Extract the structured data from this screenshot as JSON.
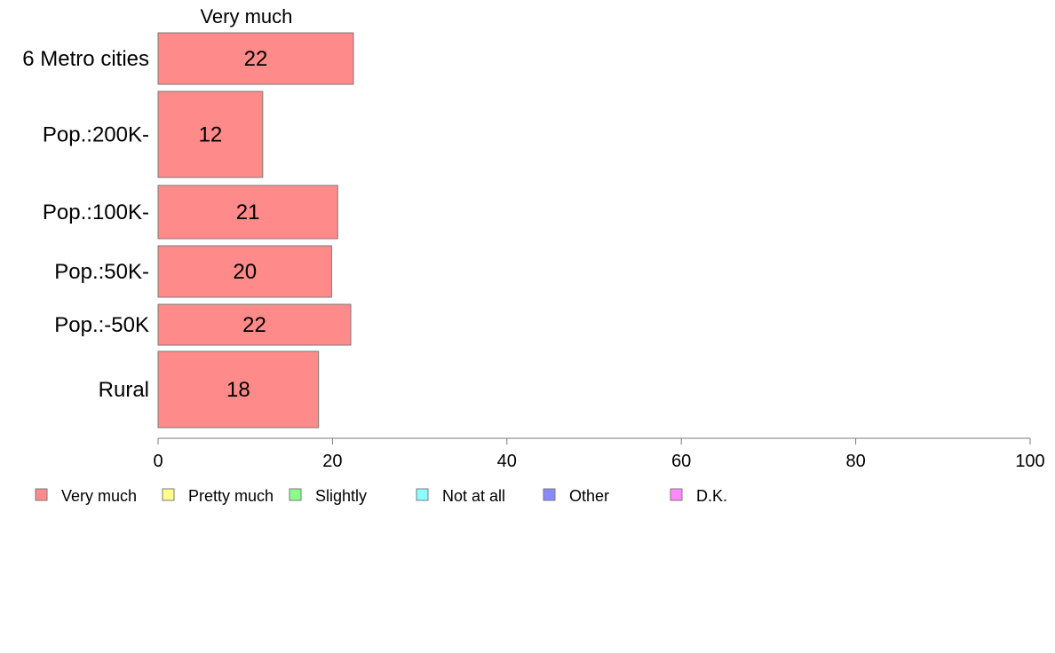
{
  "chart_data": {
    "type": "bar",
    "orientation": "horizontal",
    "stacked": true,
    "panel_title": "Very much",
    "categories": [
      "6 Metro cities",
      "Pop.:200K-",
      "Pop.:100K-",
      "Pop.:50K-",
      "Pop.:-50K",
      "Rural"
    ],
    "series": [
      {
        "name": "Very much",
        "color": "#ff8a8a",
        "values": [
          22.4,
          12,
          20.6,
          19.9,
          22.1,
          18.4
        ],
        "labels": [
          "22",
          "12",
          "21",
          "20",
          "22",
          "18"
        ]
      }
    ],
    "xlim": [
      0,
      100
    ],
    "xticks": [
      0,
      20,
      40,
      60,
      80,
      100
    ],
    "xlabel": "",
    "ylabel": "",
    "grid": false,
    "legend_position": "bottom",
    "legend": [
      {
        "name": "Very much",
        "color": "#ff8a8a"
      },
      {
        "name": "Pretty much",
        "color": "#ffff8a"
      },
      {
        "name": "Slightly",
        "color": "#8aff8a"
      },
      {
        "name": "Not at all",
        "color": "#8affff"
      },
      {
        "name": "Other",
        "color": "#8a8aff"
      },
      {
        "name": "D.K.",
        "color": "#ff8aff"
      }
    ]
  }
}
